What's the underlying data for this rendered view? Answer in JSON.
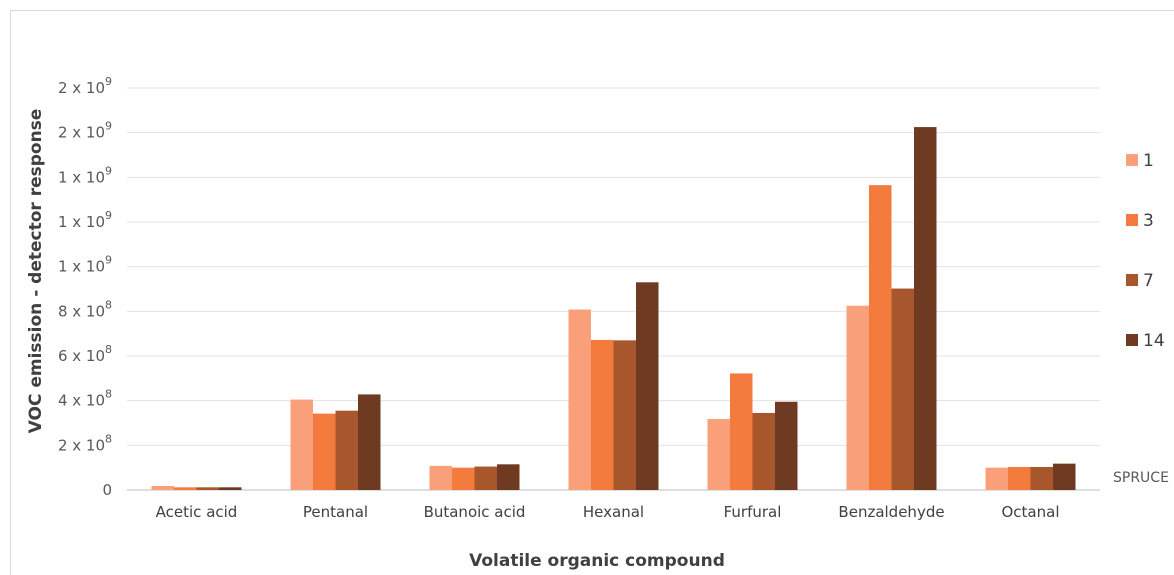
{
  "chart_data": {
    "type": "bar",
    "title": "",
    "xlabel": "Volatile organic compound",
    "ylabel": "VOC emission - detector response",
    "categories": [
      "Acetic acid",
      "Pentanal",
      "Butanoic acid",
      "Hexanal",
      "Furfural",
      "Benzaldehyde",
      "Octanal"
    ],
    "series": [
      {
        "name": "1",
        "color": "#f9a07a",
        "values": [
          18000000,
          405000000,
          108000000,
          808000000,
          318000000,
          825000000,
          100000000
        ]
      },
      {
        "name": "3",
        "color": "#f47b3e",
        "values": [
          12000000,
          342000000,
          100000000,
          672000000,
          522000000,
          1365000000,
          103000000
        ]
      },
      {
        "name": "7",
        "color": "#a8562b",
        "values": [
          12000000,
          355000000,
          105000000,
          670000000,
          345000000,
          902000000,
          103000000
        ]
      },
      {
        "name": "14",
        "color": "#6e3b22",
        "values": [
          12000000,
          428000000,
          115000000,
          930000000,
          395000000,
          1625000000,
          118000000
        ]
      }
    ],
    "ylim": [
      0,
      1800000000
    ],
    "y_ticks": [
      {
        "value": 0,
        "mant": "0",
        "exp": ""
      },
      {
        "value": 200000000,
        "mant": "2 x 10",
        "exp": "8"
      },
      {
        "value": 400000000,
        "mant": "4 x 10",
        "exp": "8"
      },
      {
        "value": 600000000,
        "mant": "6 x 10",
        "exp": "8"
      },
      {
        "value": 800000000,
        "mant": "8 x 10",
        "exp": "8"
      },
      {
        "value": 1000000000,
        "mant": "1 x 10",
        "exp": "9"
      },
      {
        "value": 1200000000,
        "mant": "1 x 10",
        "exp": "9"
      },
      {
        "value": 1400000000,
        "mant": "1 x 10",
        "exp": "9"
      },
      {
        "value": 1600000000,
        "mant": "2 x 10",
        "exp": "9"
      },
      {
        "value": 1800000000,
        "mant": "2 x 10",
        "exp": "9"
      }
    ],
    "grid": true,
    "legend_position": "right",
    "side_label": "SPRUCE"
  }
}
